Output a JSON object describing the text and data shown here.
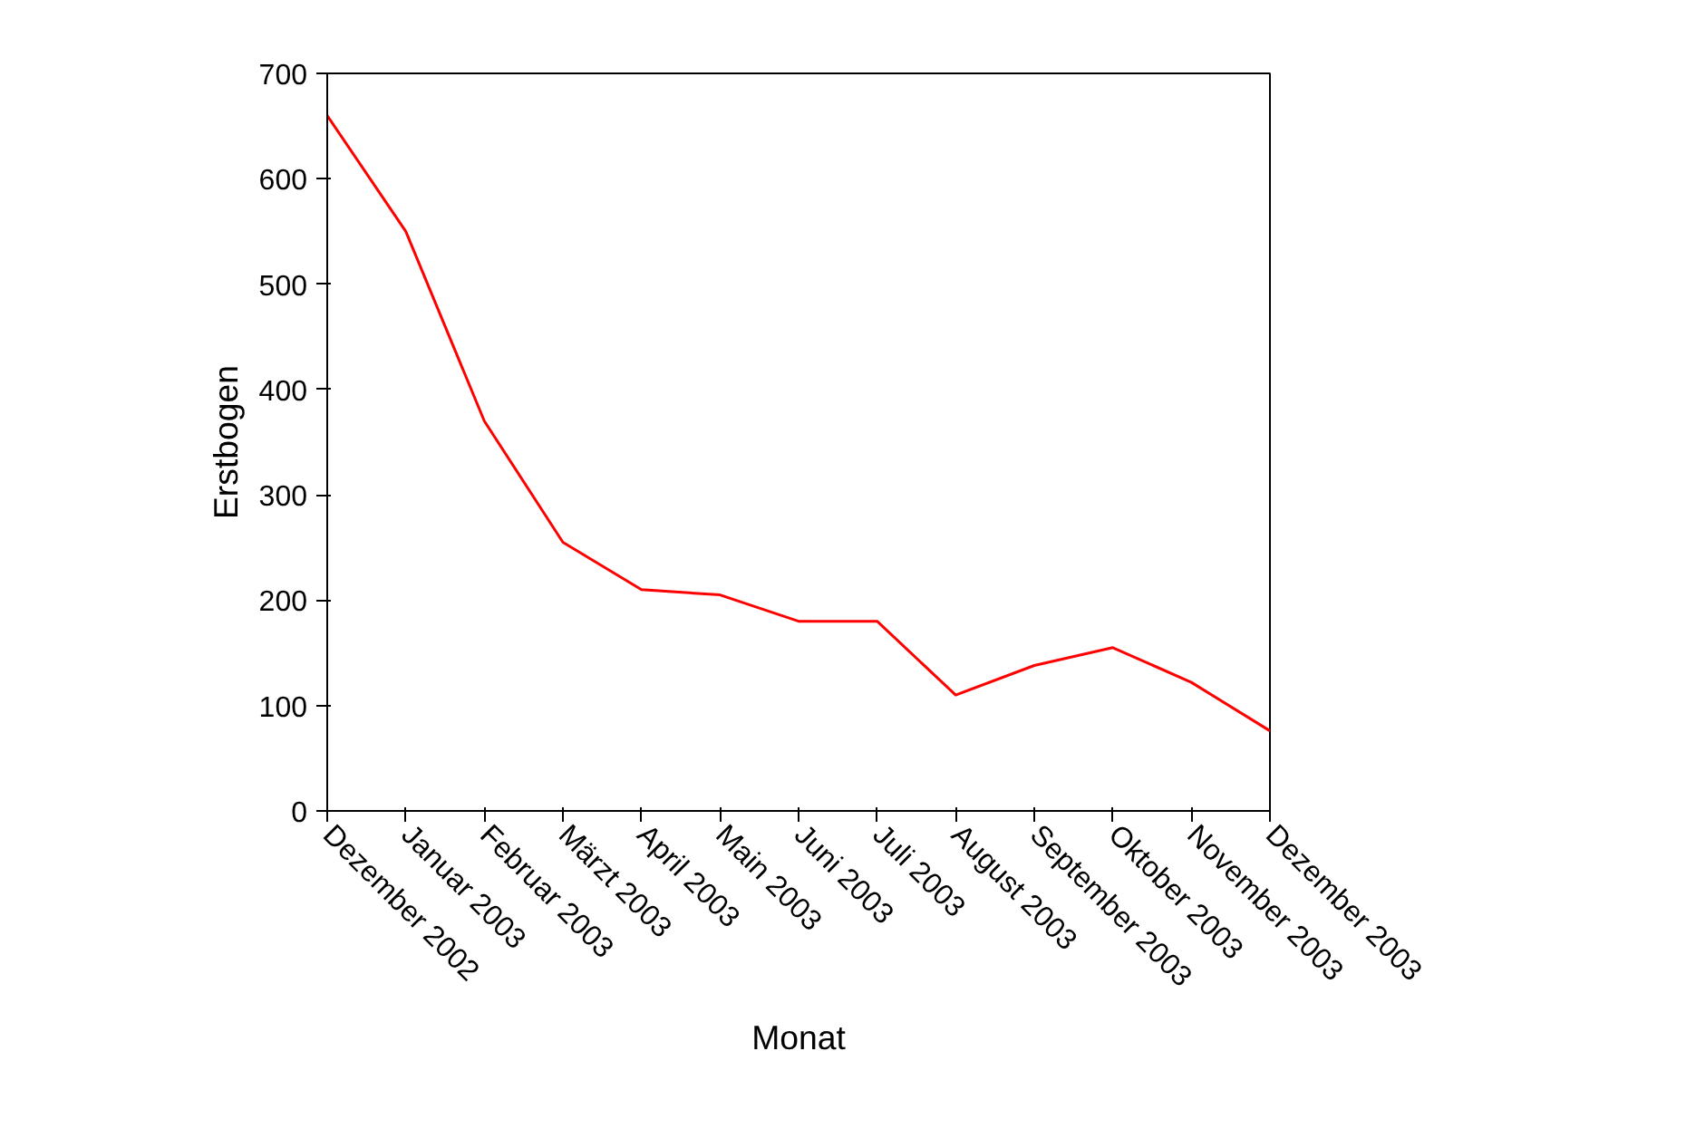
{
  "chart_data": {
    "type": "line",
    "xlabel": "Monat",
    "ylabel": "Erstbogen",
    "categories": [
      "Dezember 2002",
      "Januar 2003",
      "Februar 2003",
      "Märzt 2003",
      "April 2003",
      "Main 2003",
      "Juni 2003",
      "Juli 2003",
      "August 2003",
      "September 2003",
      "Oktober 2003",
      "November 2003",
      "Dezember 2003"
    ],
    "series": [
      {
        "color": "#ff0000",
        "values": [
          660,
          550,
          370,
          255,
          210,
          205,
          180,
          180,
          110,
          138,
          155,
          122,
          76
        ]
      }
    ],
    "ylim": [
      0,
      700
    ],
    "yticks": [
      0,
      100,
      200,
      300,
      400,
      500,
      600,
      700
    ],
    "grid": false,
    "marker": "none",
    "line_style": "solid"
  }
}
